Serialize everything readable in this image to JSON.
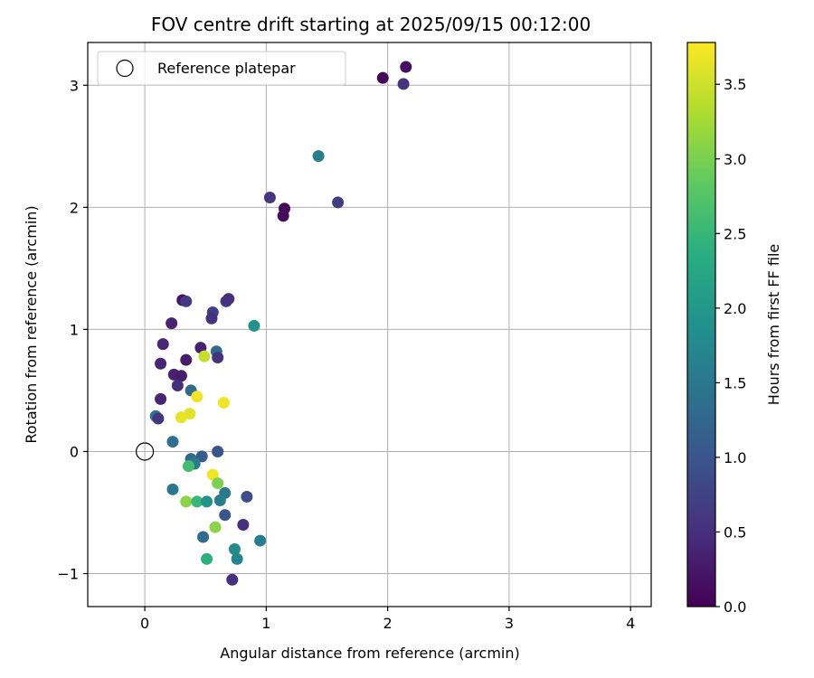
{
  "chart_data": {
    "type": "scatter",
    "title": "FOV centre drift starting at 2025/09/15 00:12:00",
    "xlabel": "Angular distance from reference (arcmin)",
    "ylabel": "Rotation from reference (arcmin)",
    "xlim": [
      -0.47,
      4.17
    ],
    "ylim": [
      -1.27,
      3.35
    ],
    "xticks": [
      0,
      1,
      2,
      3,
      4
    ],
    "yticks": [
      -1,
      0,
      1,
      2,
      3
    ],
    "xtick_labels": [
      "0",
      "1",
      "2",
      "3",
      "4"
    ],
    "ytick_labels": [
      "−1",
      "0",
      "1",
      "2",
      "3"
    ],
    "grid": true,
    "legend": {
      "position": "top-left",
      "entries": [
        {
          "label": "Reference platepar",
          "marker": "open-circle"
        }
      ]
    },
    "reference_point": {
      "x": 0,
      "y": 0
    },
    "colorbar": {
      "label": "Hours from first FF file",
      "range": [
        0,
        3.78
      ],
      "ticks": [
        0.0,
        0.5,
        1.0,
        1.5,
        2.0,
        2.5,
        3.0,
        3.5
      ],
      "tick_labels": [
        "0.0",
        "0.5",
        "1.0",
        "1.5",
        "2.0",
        "2.5",
        "3.0",
        "3.5"
      ],
      "colormap": "viridis"
    },
    "points": [
      {
        "x": 1.96,
        "y": 3.06,
        "c": 0.05
      },
      {
        "x": 2.15,
        "y": 3.15,
        "c": 0.15
      },
      {
        "x": 2.13,
        "y": 3.01,
        "c": 0.55
      },
      {
        "x": 1.43,
        "y": 2.42,
        "c": 1.6
      },
      {
        "x": 1.03,
        "y": 2.08,
        "c": 0.6
      },
      {
        "x": 1.15,
        "y": 1.99,
        "c": 0.1
      },
      {
        "x": 1.14,
        "y": 1.93,
        "c": 0.12
      },
      {
        "x": 1.59,
        "y": 2.04,
        "c": 0.7
      },
      {
        "x": 0.31,
        "y": 1.24,
        "c": 0.2
      },
      {
        "x": 0.34,
        "y": 1.23,
        "c": 0.65
      },
      {
        "x": 0.67,
        "y": 1.23,
        "c": 0.6
      },
      {
        "x": 0.69,
        "y": 1.25,
        "c": 0.5
      },
      {
        "x": 0.56,
        "y": 1.14,
        "c": 0.7
      },
      {
        "x": 0.55,
        "y": 1.09,
        "c": 0.55
      },
      {
        "x": 0.22,
        "y": 1.05,
        "c": 0.35
      },
      {
        "x": 0.9,
        "y": 1.03,
        "c": 1.9
      },
      {
        "x": 0.15,
        "y": 0.88,
        "c": 0.4
      },
      {
        "x": 0.46,
        "y": 0.85,
        "c": 0.35
      },
      {
        "x": 0.59,
        "y": 0.82,
        "c": 1.3
      },
      {
        "x": 0.6,
        "y": 0.77,
        "c": 0.55
      },
      {
        "x": 0.49,
        "y": 0.78,
        "c": 3.45
      },
      {
        "x": 0.13,
        "y": 0.72,
        "c": 0.4
      },
      {
        "x": 0.34,
        "y": 0.75,
        "c": 0.3
      },
      {
        "x": 0.24,
        "y": 0.63,
        "c": 0.35
      },
      {
        "x": 0.3,
        "y": 0.62,
        "c": 0.3
      },
      {
        "x": 0.27,
        "y": 0.54,
        "c": 0.5
      },
      {
        "x": 0.38,
        "y": 0.5,
        "c": 1.3
      },
      {
        "x": 0.43,
        "y": 0.45,
        "c": 3.7
      },
      {
        "x": 0.13,
        "y": 0.43,
        "c": 0.4
      },
      {
        "x": 0.65,
        "y": 0.4,
        "c": 3.7
      },
      {
        "x": 0.37,
        "y": 0.31,
        "c": 3.6
      },
      {
        "x": 0.3,
        "y": 0.28,
        "c": 3.65
      },
      {
        "x": 0.09,
        "y": 0.29,
        "c": 1.4
      },
      {
        "x": 0.11,
        "y": 0.27,
        "c": 0.6
      },
      {
        "x": 0.23,
        "y": 0.08,
        "c": 1.4
      },
      {
        "x": 0.6,
        "y": 0.0,
        "c": 1.0
      },
      {
        "x": 0.38,
        "y": -0.06,
        "c": 1.3
      },
      {
        "x": 0.47,
        "y": -0.04,
        "c": 1.1
      },
      {
        "x": 0.41,
        "y": -0.1,
        "c": 1.6
      },
      {
        "x": 0.36,
        "y": -0.12,
        "c": 2.6
      },
      {
        "x": 0.56,
        "y": -0.19,
        "c": 3.7
      },
      {
        "x": 0.6,
        "y": -0.26,
        "c": 3.0
      },
      {
        "x": 0.23,
        "y": -0.31,
        "c": 1.5
      },
      {
        "x": 0.66,
        "y": -0.34,
        "c": 1.5
      },
      {
        "x": 0.84,
        "y": -0.37,
        "c": 0.9
      },
      {
        "x": 0.34,
        "y": -0.41,
        "c": 3.1
      },
      {
        "x": 0.43,
        "y": -0.41,
        "c": 2.5
      },
      {
        "x": 0.51,
        "y": -0.41,
        "c": 1.9
      },
      {
        "x": 0.62,
        "y": -0.4,
        "c": 1.6
      },
      {
        "x": 0.66,
        "y": -0.52,
        "c": 1.0
      },
      {
        "x": 0.81,
        "y": -0.6,
        "c": 0.5
      },
      {
        "x": 0.58,
        "y": -0.62,
        "c": 3.1
      },
      {
        "x": 0.48,
        "y": -0.7,
        "c": 1.3
      },
      {
        "x": 0.95,
        "y": -0.73,
        "c": 1.6
      },
      {
        "x": 0.74,
        "y": -0.8,
        "c": 1.8
      },
      {
        "x": 0.51,
        "y": -0.88,
        "c": 2.4
      },
      {
        "x": 0.76,
        "y": -0.88,
        "c": 1.7
      },
      {
        "x": 0.72,
        "y": -1.05,
        "c": 0.5
      }
    ]
  }
}
